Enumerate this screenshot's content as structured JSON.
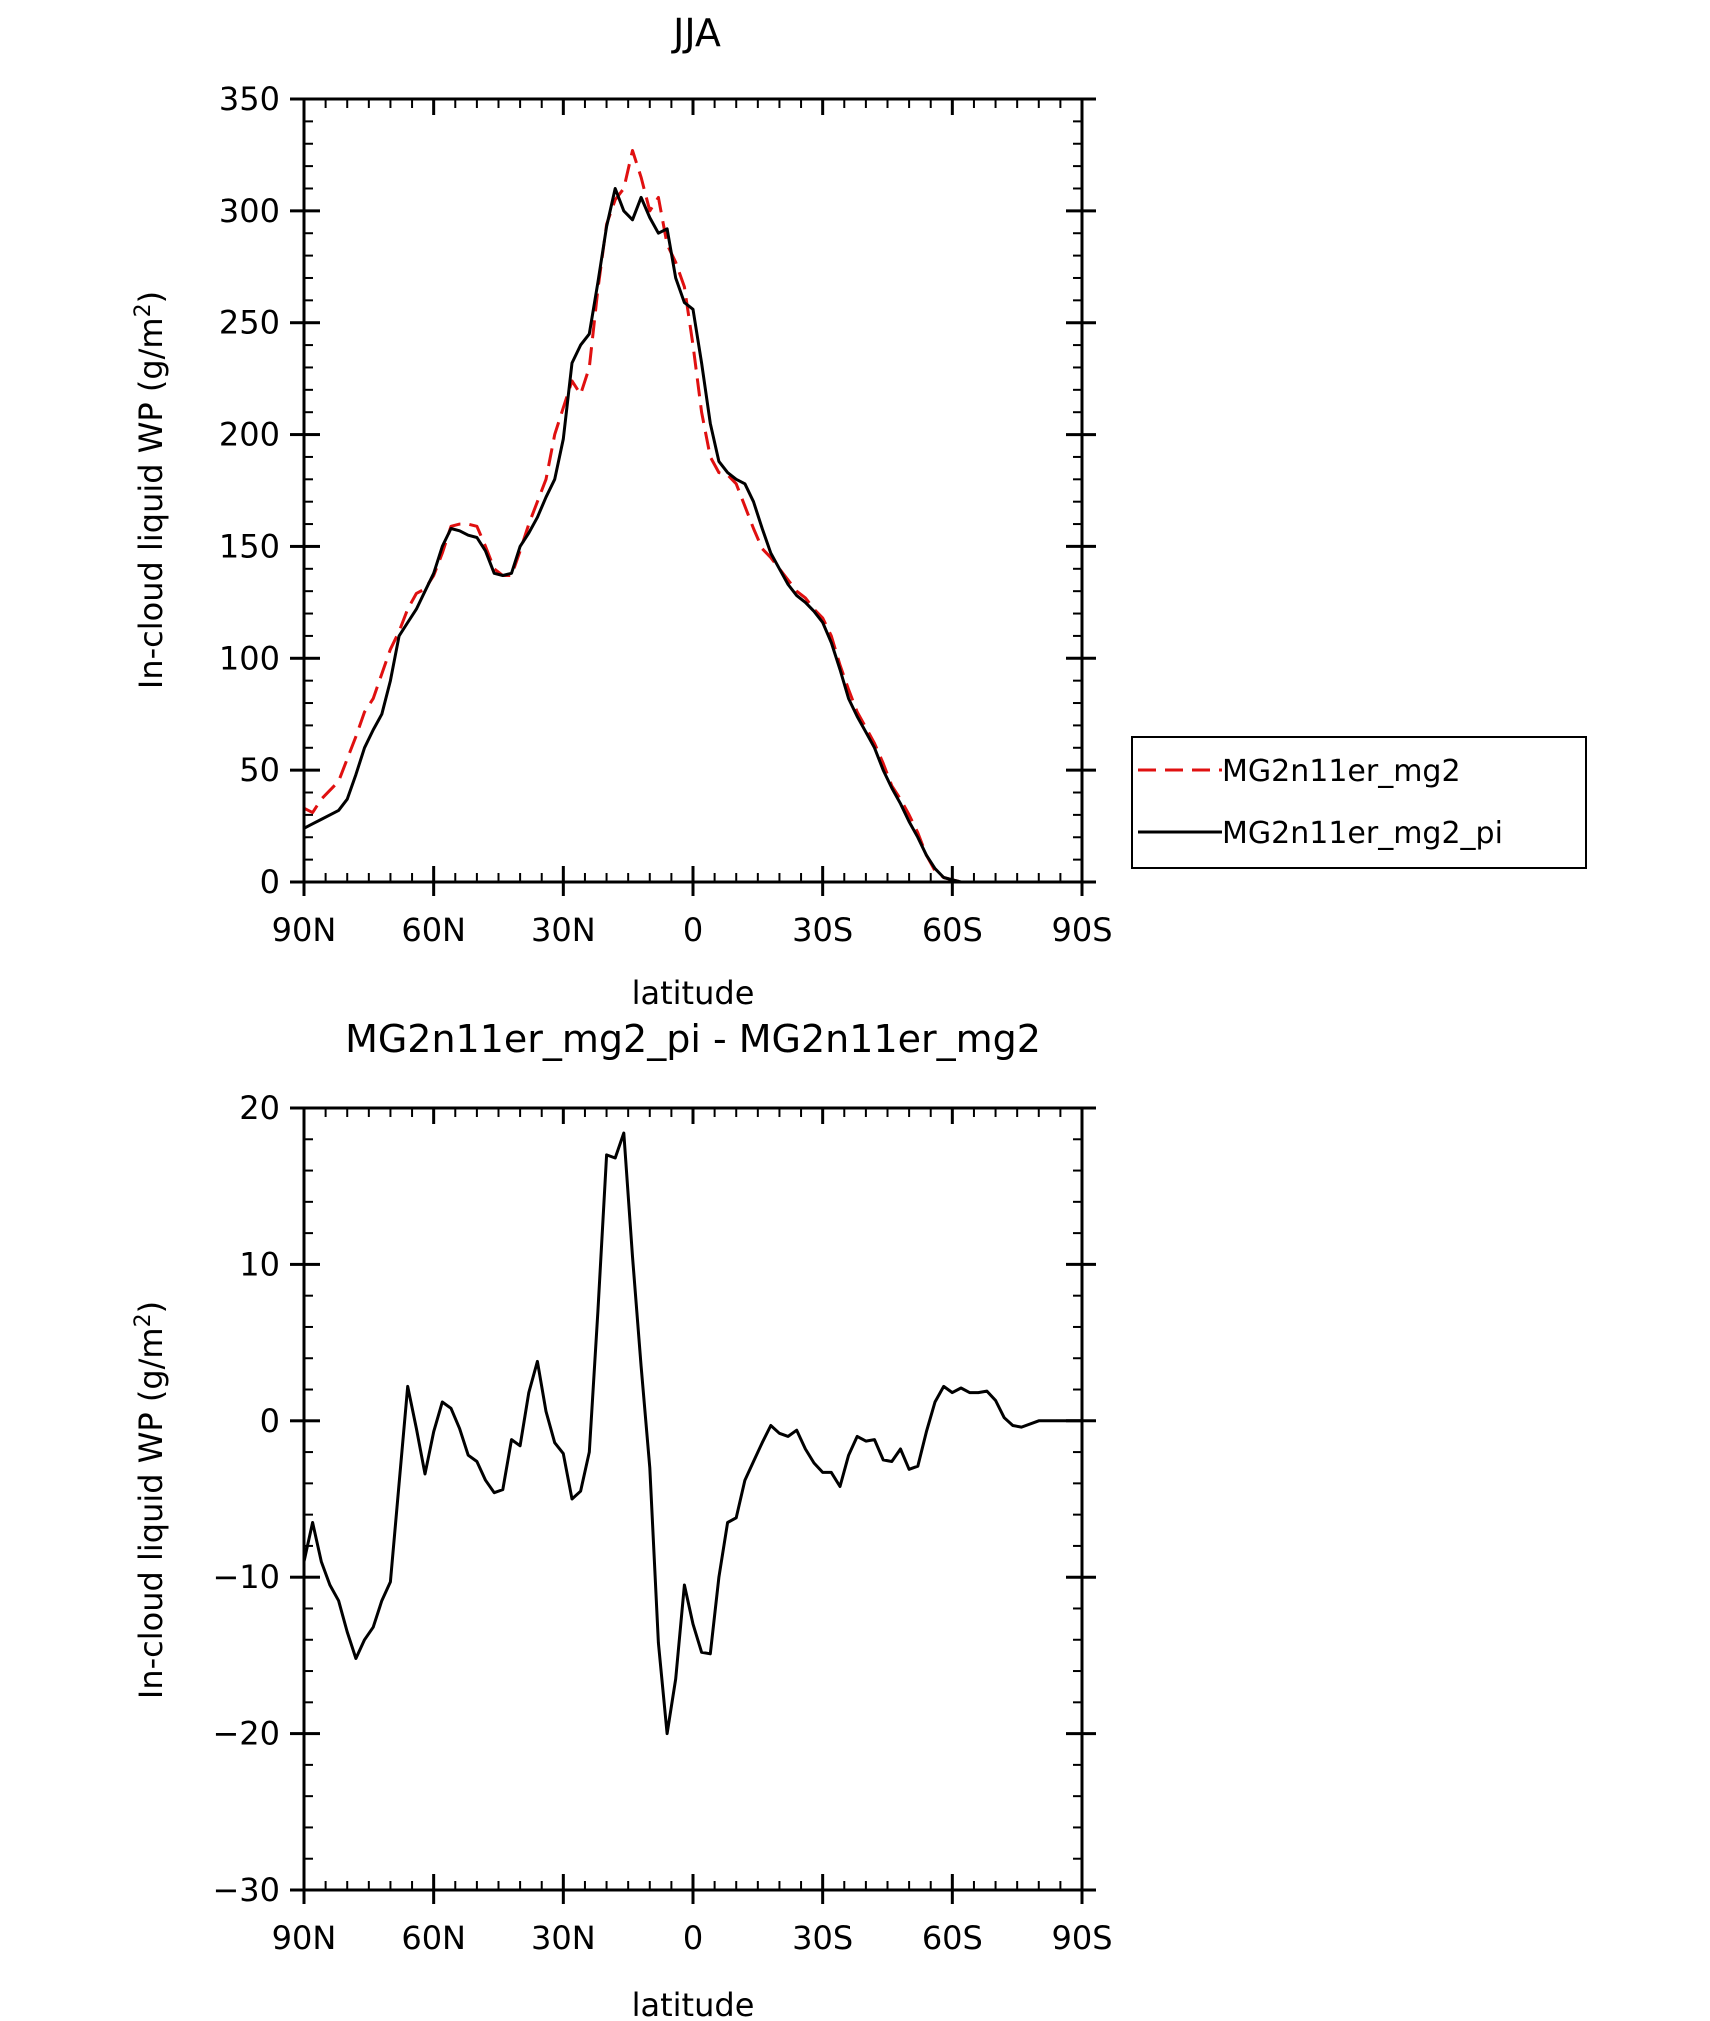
{
  "chart_data": [
    {
      "type": "line",
      "title": "JJA",
      "xlabel": "latitude",
      "ylabel": "In-cloud liquid WP (g/m",
      "ylabel_sup": "2",
      "ylabel_end": ")",
      "xlim": [
        90,
        -90
      ],
      "ylim": [
        0,
        350
      ],
      "x_ticks": [
        90,
        60,
        30,
        0,
        -30,
        -60,
        -90
      ],
      "x_tick_labels": [
        "90N",
        "60N",
        "30N",
        "0",
        "30S",
        "60S",
        "90S"
      ],
      "y_ticks": [
        0,
        50,
        100,
        150,
        200,
        250,
        300,
        350
      ],
      "y_tick_labels": [
        "0",
        "50",
        "100",
        "150",
        "200",
        "250",
        "300",
        "350"
      ],
      "legend_position": "right",
      "series": [
        {
          "name": "MG2n11er_mg2",
          "color": "#e01010",
          "dash": "dashed",
          "x": [
            90,
            88,
            86,
            84,
            82,
            80,
            78,
            76,
            74,
            72,
            70,
            68,
            66,
            64,
            62,
            60,
            58,
            56,
            54,
            52,
            50,
            48,
            46,
            44,
            42,
            40,
            38,
            36,
            34,
            32,
            30,
            28,
            26,
            24,
            22,
            20,
            18,
            16,
            14,
            12,
            10,
            8,
            6,
            4,
            2,
            0,
            -2,
            -4,
            -6,
            -8,
            -10,
            -12,
            -14,
            -16,
            -18,
            -20,
            -22,
            -24,
            -26,
            -28,
            -30,
            -32,
            -34,
            -36,
            -38,
            -40,
            -42,
            -44,
            -46,
            -48,
            -50,
            -52,
            -54,
            -56,
            -58,
            -60,
            -62,
            -64,
            -66,
            -68,
            -70,
            -72,
            -74,
            -76,
            -80,
            -85,
            -90
          ],
          "y": [
            33,
            31,
            37,
            41,
            45,
            55,
            65,
            76,
            82,
            93,
            104,
            112,
            122,
            129,
            131,
            137,
            147,
            159,
            160,
            160,
            159,
            150,
            140,
            137,
            137,
            148,
            160,
            170,
            180,
            200,
            212,
            224,
            218,
            230,
            265,
            294,
            305,
            310,
            327,
            315,
            300,
            306,
            285,
            277,
            266,
            240,
            210,
            190,
            183,
            182,
            178,
            168,
            158,
            149,
            145,
            140,
            135,
            130,
            127,
            122,
            118,
            110,
            97,
            86,
            76,
            69,
            62,
            53,
            43,
            37,
            30,
            22,
            12,
            5,
            2,
            1,
            0,
            0,
            0,
            0,
            0,
            0,
            0,
            0,
            0,
            0,
            0
          ]
        },
        {
          "name": "MG2n11er_mg2_pi",
          "color": "#000000",
          "dash": "solid",
          "x": [
            90,
            88,
            86,
            84,
            82,
            80,
            78,
            76,
            74,
            72,
            70,
            68,
            66,
            64,
            62,
            60,
            58,
            56,
            54,
            52,
            50,
            48,
            46,
            44,
            42,
            40,
            38,
            36,
            34,
            32,
            30,
            28,
            26,
            24,
            22,
            20,
            18,
            16,
            14,
            12,
            10,
            8,
            6,
            4,
            2,
            0,
            -2,
            -4,
            -6,
            -8,
            -10,
            -12,
            -14,
            -16,
            -18,
            -20,
            -22,
            -24,
            -26,
            -28,
            -30,
            -32,
            -34,
            -36,
            -38,
            -40,
            -42,
            -44,
            -46,
            -48,
            -50,
            -52,
            -54,
            -56,
            -58,
            -60,
            -62,
            -64,
            -66,
            -68,
            -70,
            -72,
            -74,
            -76,
            -80,
            -85,
            -90
          ],
          "y": [
            24,
            26,
            28,
            30,
            32,
            37,
            48,
            60,
            68,
            75,
            90,
            110,
            116,
            122,
            130,
            138,
            150,
            158,
            157,
            155,
            154,
            148,
            138,
            137,
            138,
            150,
            156,
            163,
            172,
            180,
            198,
            232,
            240,
            245,
            268,
            293,
            310,
            300,
            296,
            306,
            297,
            290,
            292,
            270,
            259,
            256,
            232,
            205,
            188,
            183,
            180,
            178,
            170,
            158,
            147,
            140,
            133,
            128,
            125,
            121,
            116,
            107,
            95,
            82,
            74,
            67,
            60,
            50,
            42,
            35,
            27,
            20,
            12,
            6,
            2,
            1,
            0,
            0,
            0,
            0,
            0,
            0,
            0,
            0,
            0,
            0,
            0
          ]
        }
      ]
    },
    {
      "type": "line",
      "title": "MG2n11er_mg2_pi - MG2n11er_mg2",
      "xlabel": "latitude",
      "ylabel": "In-cloud liquid WP (g/m",
      "ylabel_sup": "2",
      "ylabel_end": ")",
      "xlim": [
        90,
        -90
      ],
      "ylim": [
        -30,
        20
      ],
      "x_ticks": [
        90,
        60,
        30,
        0,
        -30,
        -60,
        -90
      ],
      "x_tick_labels": [
        "90N",
        "60N",
        "30N",
        "0",
        "30S",
        "60S",
        "90S"
      ],
      "y_ticks": [
        -30,
        -20,
        -10,
        0,
        10,
        20
      ],
      "y_tick_labels": [
        "−30",
        "−20",
        "−10",
        "0",
        "10",
        "20"
      ],
      "series": [
        {
          "color": "#000000",
          "dash": "solid",
          "x": [
            90,
            88,
            86,
            84,
            82,
            80,
            78,
            76,
            74,
            72,
            70,
            68,
            66,
            64,
            62,
            60,
            58,
            56,
            54,
            52,
            50,
            48,
            46,
            44,
            42,
            40,
            38,
            36,
            34,
            32,
            30,
            28,
            26,
            24,
            22,
            20,
            18,
            16,
            14,
            12,
            10,
            8,
            6,
            4,
            2,
            0,
            -2,
            -4,
            -6,
            -8,
            -10,
            -12,
            -14,
            -16,
            -18,
            -20,
            -22,
            -24,
            -26,
            -28,
            -30,
            -32,
            -34,
            -36,
            -38,
            -40,
            -42,
            -44,
            -46,
            -48,
            -50,
            -52,
            -54,
            -56,
            -58,
            -60,
            -62,
            -64,
            -66,
            -68,
            -70,
            -72,
            -74,
            -76,
            -80,
            -85,
            -90
          ],
          "y": [
            -9,
            -6.5,
            -9,
            -10.5,
            -11.5,
            -13.5,
            -15.2,
            -14,
            -13.2,
            -11.5,
            -10.3,
            -4,
            2.2,
            -0.5,
            -3.4,
            -0.7,
            1.2,
            0.8,
            -0.5,
            -2.2,
            -2.6,
            -3.8,
            -4.6,
            -4.4,
            -1.2,
            -1.6,
            1.8,
            3.8,
            0.6,
            -1.4,
            -2.1,
            -5,
            -4.5,
            -2,
            7,
            17,
            16.8,
            18.4,
            10.5,
            3.5,
            -3,
            -14.2,
            -20,
            -16.5,
            -10.5,
            -13,
            -14.8,
            -14.9,
            -10,
            -6.5,
            -6.2,
            -3.8,
            -2.6,
            -1.4,
            -0.3,
            -0.8,
            -1,
            -0.6,
            -1.8,
            -2.7,
            -3.3,
            -3.3,
            -4.2,
            -2.2,
            -1,
            -1.3,
            -1.2,
            -2.5,
            -2.6,
            -1.8,
            -3.1,
            -2.9,
            -0.7,
            1.2,
            2.2,
            1.8,
            2.1,
            1.8,
            1.8,
            1.9,
            1.3,
            0.2,
            -0.3,
            -0.4,
            0,
            0,
            0
          ]
        }
      ]
    }
  ]
}
